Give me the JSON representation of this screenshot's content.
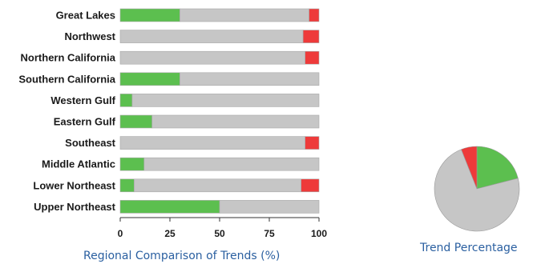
{
  "chart_data": [
    {
      "type": "bar",
      "orientation": "horizontal",
      "stacked": true,
      "title": "Regional Comparison of Trends (%)",
      "categories": [
        "Great Lakes",
        "Northwest",
        "Northern California",
        "Southern California",
        "Western Gulf",
        "Eastern Gulf",
        "Southeast",
        "Middle Atlantic",
        "Lower Northeast",
        "Upper Northeast"
      ],
      "series": [
        {
          "color": "#5cbf4f",
          "values": [
            30,
            0,
            0,
            30,
            6,
            16,
            0,
            12,
            7,
            50
          ]
        },
        {
          "color": "#c6c6c6",
          "values": [
            65,
            92,
            93,
            70,
            94,
            84,
            93,
            88,
            84,
            50
          ]
        },
        {
          "color": "#ee3a3a",
          "values": [
            5,
            8,
            7,
            0,
            0,
            0,
            7,
            0,
            9,
            0
          ]
        }
      ],
      "xlim": [
        0,
        100
      ],
      "xticks": [
        "0",
        "25",
        "50",
        "75",
        "100"
      ],
      "grid": false
    },
    {
      "type": "pie",
      "title": "Trend Percentage",
      "slices": [
        {
          "value": 21,
          "color": "#5cbf4f"
        },
        {
          "value": 73,
          "color": "#c6c6c6"
        },
        {
          "value": 6,
          "color": "#ee3a3a"
        }
      ]
    }
  ]
}
